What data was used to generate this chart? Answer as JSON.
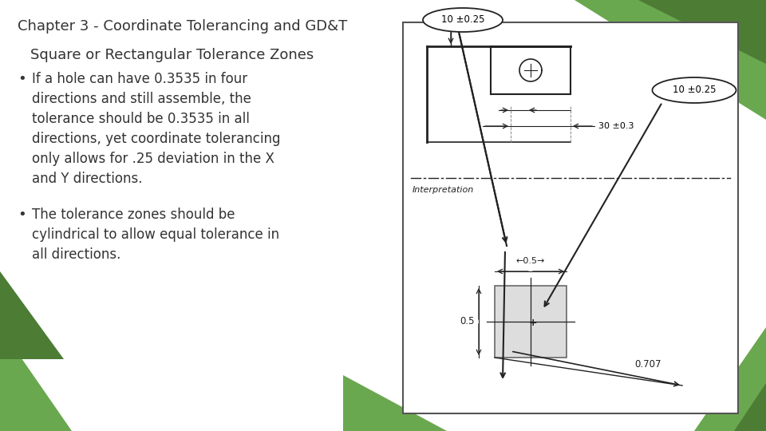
{
  "title": "Chapter 3 - Coordinate Tolerancing and GD&T",
  "subtitle": "Square or Rectangular Tolerance Zones",
  "bullet1_lines": [
    "If a hole can have 0.3535 in four",
    "directions and still assemble, the",
    "tolerance should be 0.3535 in all",
    "directions, yet coordinate tolerancing",
    "only allows for .25 deviation in the X",
    "and Y directions."
  ],
  "bullet2_lines": [
    "The tolerance zones should be",
    "cylindrical to allow equal tolerance in",
    "all directions."
  ],
  "bg_color": "#ffffff",
  "title_color": "#333333",
  "subtitle_color": "#333333",
  "bullet_color": "#333333",
  "green_color": "#6aa84f",
  "title_fontsize": 13,
  "subtitle_fontsize": 13,
  "bullet_fontsize": 12
}
